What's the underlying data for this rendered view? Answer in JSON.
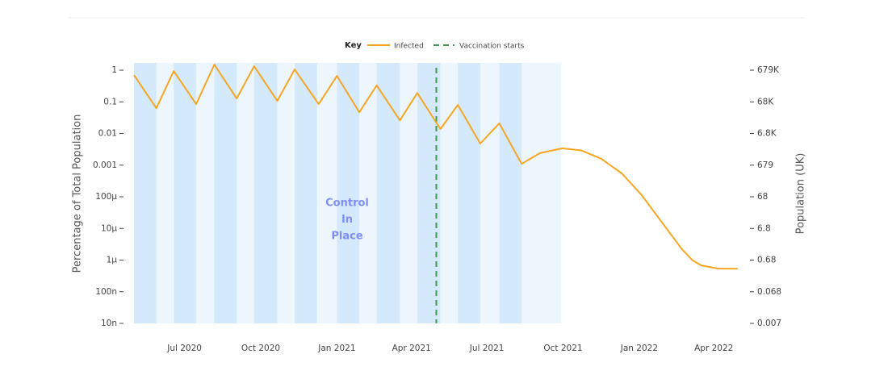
{
  "chart_data": {
    "type": "line",
    "legend_title": "Key",
    "y_label": "Percentage of Total Population",
    "y2_label": "Population (UK)",
    "yscale": "log",
    "y2scale": "log",
    "grid": false,
    "ylim": [
      1e-08,
      1.7
    ],
    "yticks": [
      1,
      0.1,
      0.01,
      0.001,
      {
        "value": 0.0001,
        "label": "100µ"
      },
      {
        "value": 1e-05,
        "label": "10µ"
      },
      {
        "value": 1e-06,
        "label": "1µ"
      },
      {
        "value": 1e-07,
        "label": "100n"
      },
      {
        "value": 1e-08,
        "label": "10n"
      }
    ],
    "y2lim": [
      0.00679,
      1154300
    ],
    "y2ticks": [
      {
        "value": 679000,
        "label": "679K"
      },
      {
        "value": 67900,
        "label": "68K"
      },
      {
        "value": 6790,
        "label": "6.8K"
      },
      679,
      {
        "value": 67.9,
        "label": "68"
      },
      {
        "value": 6.79,
        "label": "6.8"
      },
      {
        "value": 0.679,
        "label": "0.68"
      },
      {
        "value": 0.0679,
        "label": "0.068"
      },
      {
        "value": 0.00679,
        "label": "0.007"
      }
    ],
    "xlim": [
      "2020-05-01",
      "2022-05-01"
    ],
    "xticks": [
      {
        "value": "2020-07-01",
        "label": "Jul 2020"
      },
      {
        "value": "2020-10-01",
        "label": "Oct 2020"
      },
      {
        "value": "2021-01-01",
        "label": "Jan 2021"
      },
      {
        "value": "2021-04-01",
        "label": "Apr 2021"
      },
      {
        "value": "2021-07-01",
        "label": "Jul 2021"
      },
      {
        "value": "2021-10-01",
        "label": "Oct 2021"
      },
      {
        "value": "2022-01-01",
        "label": "Jan 2022"
      },
      {
        "value": "2022-04-01",
        "label": "Apr 2022"
      }
    ],
    "series": [
      {
        "name": "Infected",
        "color": "#f5a623",
        "x": [
          "2020-05-01",
          "2020-05-28",
          "2020-06-18",
          "2020-07-15",
          "2020-08-06",
          "2020-09-02",
          "2020-09-23",
          "2020-10-21",
          "2020-11-11",
          "2020-12-10",
          "2021-01-01",
          "2021-01-28",
          "2021-02-18",
          "2021-03-18",
          "2021-04-08",
          "2021-05-06",
          "2021-05-27",
          "2021-06-23",
          "2021-07-16",
          "2021-08-12",
          "2021-09-03",
          "2021-09-30",
          "2021-10-23",
          "2021-11-16",
          "2021-12-11",
          "2022-01-04",
          "2022-01-28",
          "2022-02-21",
          "2022-03-06",
          "2022-03-17",
          "2022-04-06",
          "2022-04-30"
        ],
        "values": [
          0.7,
          0.063,
          0.94,
          0.085,
          1.5,
          0.128,
          1.34,
          0.107,
          1.06,
          0.085,
          0.66,
          0.047,
          0.33,
          0.026,
          0.19,
          0.0138,
          0.08,
          0.0048,
          0.021,
          0.0011,
          0.0024,
          0.0034,
          0.0029,
          0.0016,
          0.00055,
          0.000112,
          1.6e-05,
          2.3e-06,
          1e-06,
          6.8e-07,
          5.4e-07,
          5.3e-07
        ]
      }
    ],
    "vaccination": {
      "name": "Vaccination starts",
      "x": "2021-05-01",
      "color": "#3d9a4f"
    },
    "control_period": {
      "start": "2020-05-01",
      "end": "2021-09-29",
      "color": "#eef6fd"
    },
    "control_bands": {
      "color": "#d4e9fb",
      "bands": [
        {
          "start": "2020-05-01",
          "end": "2020-05-28"
        },
        {
          "start": "2020-06-18",
          "end": "2020-07-15"
        },
        {
          "start": "2020-08-06",
          "end": "2020-09-02"
        },
        {
          "start": "2020-09-23",
          "end": "2020-10-21"
        },
        {
          "start": "2020-11-11",
          "end": "2020-12-08"
        },
        {
          "start": "2021-01-01",
          "end": "2021-01-28"
        },
        {
          "start": "2021-02-18",
          "end": "2021-03-18"
        },
        {
          "start": "2021-04-08",
          "end": "2021-05-06"
        },
        {
          "start": "2021-05-27",
          "end": "2021-06-23"
        },
        {
          "start": "2021-07-16",
          "end": "2021-08-12"
        }
      ]
    },
    "annotation": {
      "lines": [
        "Control",
        "In",
        "Place"
      ],
      "color": "#7f8ef5"
    }
  }
}
